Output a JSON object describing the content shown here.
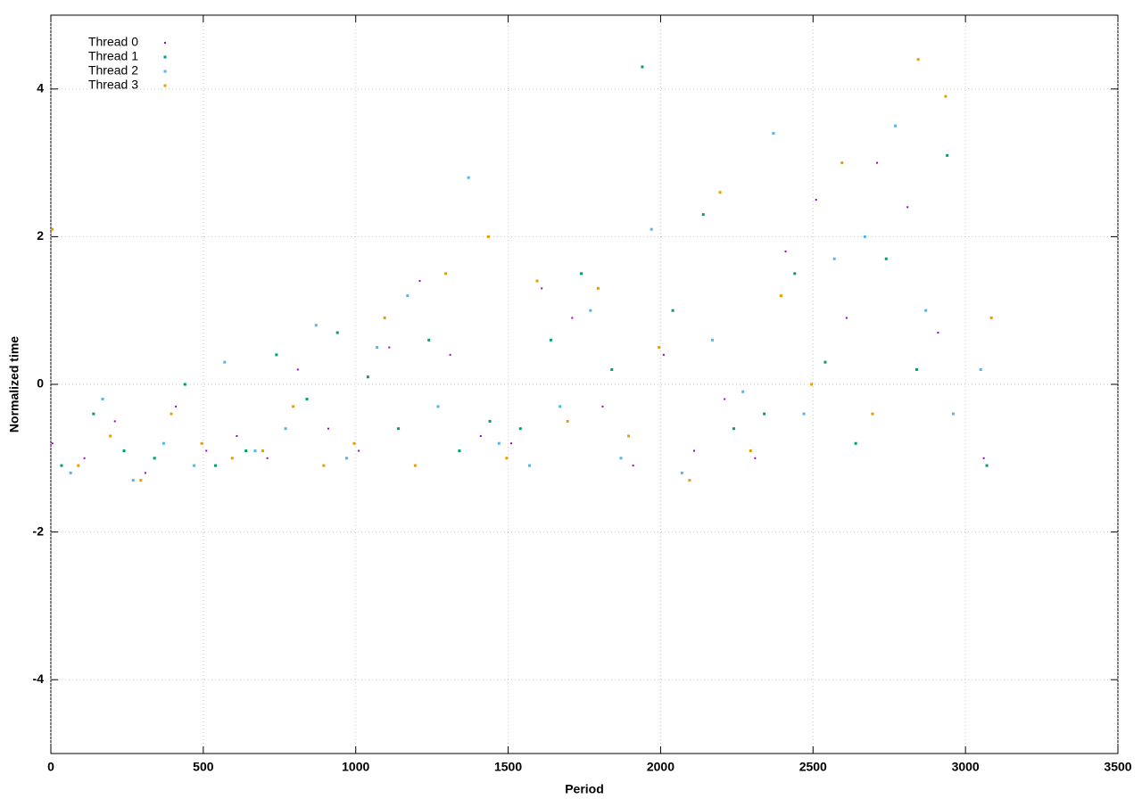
{
  "chart_data": {
    "type": "scatter",
    "x_label": "Period",
    "y_label": "Normalized time",
    "xlim": [
      0,
      3500
    ],
    "ylim": [
      -5,
      5
    ],
    "xticks": [
      0,
      500,
      1000,
      1500,
      2000,
      2500,
      3000,
      3500
    ],
    "yticks": [
      -4,
      -2,
      0,
      2,
      4
    ],
    "grid": true,
    "legend": "top-left",
    "series": [
      {
        "name": "Thread 0",
        "color": "#9400d3",
        "x": [
          5,
          110,
          210,
          310,
          410,
          510,
          610,
          710,
          810,
          910,
          1010,
          1110,
          1210,
          1310,
          1410,
          1510,
          1610,
          1710,
          1810,
          1910,
          2010,
          2110,
          2210,
          2310,
          2410,
          2510,
          2610,
          2710,
          2810,
          2910,
          3060
        ],
        "values": [
          -0.8,
          -1.0,
          -0.5,
          -1.2,
          -0.3,
          -0.9,
          -0.7,
          -1.0,
          0.2,
          -0.6,
          -0.9,
          0.5,
          1.4,
          0.4,
          -0.7,
          -0.8,
          1.3,
          0.9,
          -0.3,
          -1.1,
          0.4,
          -0.9,
          -0.2,
          -1.0,
          1.8,
          2.5,
          0.9,
          3.0,
          2.4,
          0.7,
          -1.0
        ]
      },
      {
        "name": "Thread 1",
        "color": "#009e73",
        "x": [
          35,
          140,
          240,
          340,
          440,
          540,
          640,
          740,
          840,
          940,
          1040,
          1140,
          1240,
          1340,
          1440,
          1540,
          1640,
          1740,
          1840,
          1940,
          2040,
          2140,
          2240,
          2340,
          2440,
          2540,
          2640,
          2740,
          2840,
          2940,
          3070
        ],
        "values": [
          -1.1,
          -0.4,
          -0.9,
          -1.0,
          0.0,
          -1.1,
          -0.9,
          0.4,
          -0.2,
          0.7,
          0.1,
          -0.6,
          0.6,
          -0.9,
          -0.5,
          -0.6,
          0.6,
          1.5,
          0.2,
          4.3,
          1.0,
          2.3,
          -0.6,
          -0.4,
          1.5,
          0.3,
          -0.8,
          1.7,
          0.2,
          3.1,
          -1.1
        ]
      },
      {
        "name": "Thread 2",
        "color": "#56b4e9",
        "x": [
          65,
          170,
          270,
          370,
          470,
          570,
          670,
          770,
          870,
          970,
          1070,
          1170,
          1270,
          1370,
          1470,
          1570,
          1670,
          1770,
          1870,
          1970,
          2070,
          2170,
          2270,
          2370,
          2470,
          2570,
          2670,
          2770,
          2870,
          2960,
          3050
        ],
        "values": [
          -1.2,
          -0.2,
          -1.3,
          -0.8,
          -1.1,
          0.3,
          -0.9,
          -0.6,
          0.8,
          -1.0,
          0.5,
          1.2,
          -0.3,
          2.8,
          -0.8,
          -1.1,
          -0.3,
          1.0,
          -1.0,
          2.1,
          -1.2,
          0.6,
          -0.1,
          3.4,
          -0.4,
          1.7,
          2.0,
          3.5,
          1.0,
          -0.4,
          0.2
        ]
      },
      {
        "name": "Thread 3",
        "color": "#e69f00",
        "x": [
          5,
          90,
          195,
          295,
          395,
          495,
          595,
          695,
          795,
          895,
          995,
          1095,
          1195,
          1295,
          1435,
          1495,
          1595,
          1695,
          1795,
          1895,
          1995,
          2095,
          2195,
          2295,
          2395,
          2495,
          2595,
          2695,
          2845,
          2935,
          3085
        ],
        "values": [
          2.1,
          -1.1,
          -0.7,
          -1.3,
          -0.4,
          -0.8,
          -1.0,
          -0.9,
          -0.3,
          -1.1,
          -0.8,
          0.9,
          -1.1,
          1.5,
          2.0,
          -1.0,
          1.4,
          -0.5,
          1.3,
          -0.7,
          0.5,
          -1.3,
          2.6,
          -0.9,
          1.2,
          0.0,
          3.0,
          -0.4,
          4.4,
          3.9,
          0.9
        ]
      }
    ]
  }
}
